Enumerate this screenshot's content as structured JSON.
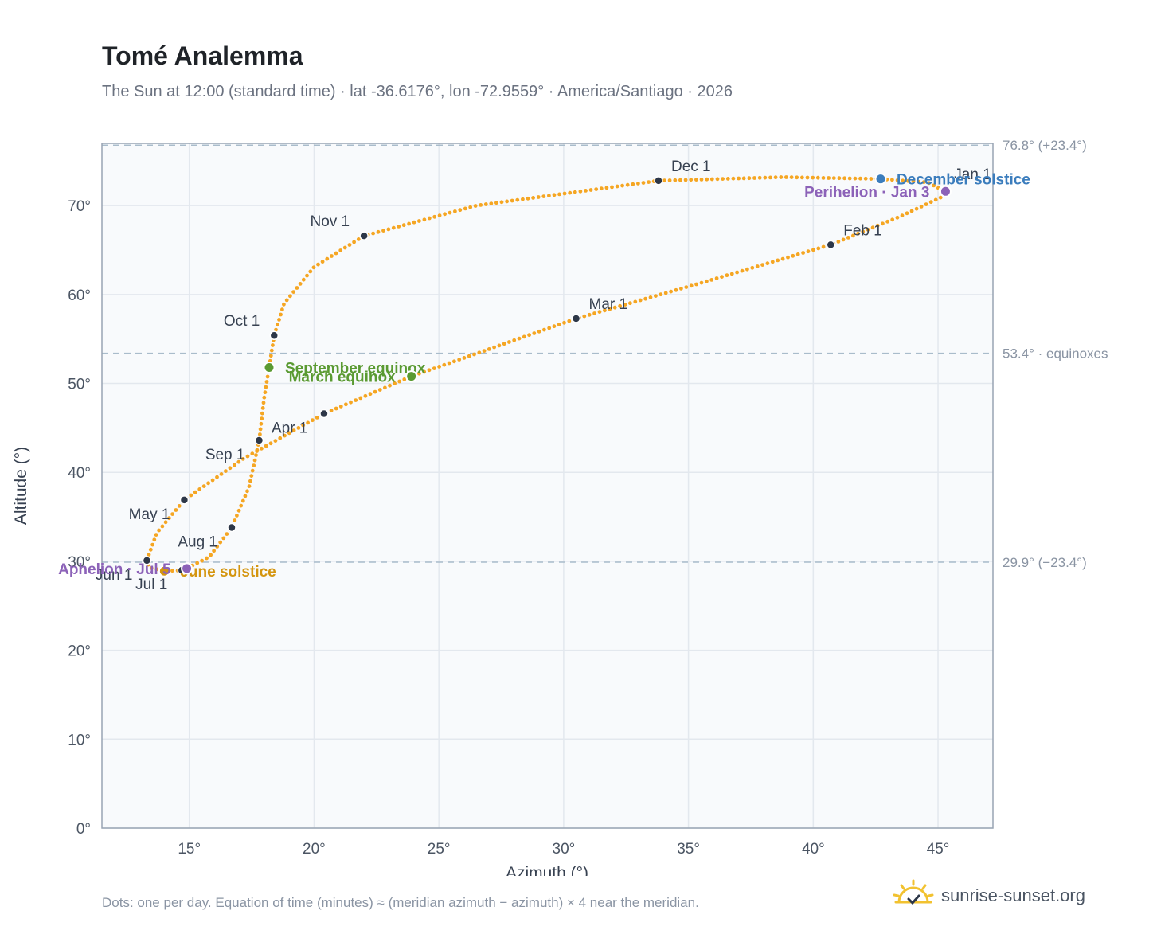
{
  "header": {
    "title": "Tomé Analemma",
    "subtitle": "The Sun at 12:00 (standard time) · lat -36.6176°, lon -72.9559° · America/Santiago · 2026"
  },
  "footer": {
    "note": "Dots: one per day. Equation of time (minutes) ≈ (meridian azimuth − azimuth) × 4 near the meridian.",
    "brand": "sunrise-sunset.org",
    "brand_icon": "sun-logo-icon"
  },
  "colors": {
    "path": "#f5a623",
    "month_marker": "#2d3748",
    "equinox": "#5a9a32",
    "december_solstice": "#3b7dbd",
    "june_solstice": "#d4950f",
    "perihelion_aphelion": "#8c62b8",
    "reference_line": "#a9bccb",
    "grid": "#e3e8ee",
    "plot_bg": "#f8fafc"
  },
  "chart_data": {
    "type": "scatter",
    "xlabel": "Azimuth (°)",
    "ylabel": "Altitude (°)",
    "xlim": [
      11.5,
      47.2
    ],
    "ylim": [
      0,
      77
    ],
    "x_ticks": [
      15,
      20,
      25,
      30,
      35,
      40,
      45
    ],
    "x_tick_labels": [
      "15°",
      "20°",
      "25°",
      "30°",
      "35°",
      "40°",
      "45°"
    ],
    "y_ticks": [
      0,
      10,
      20,
      30,
      40,
      50,
      60,
      70
    ],
    "y_tick_labels": [
      "0°",
      "10°",
      "20°",
      "30°",
      "40°",
      "50°",
      "60°",
      "70°"
    ],
    "grid": true,
    "path_keypoints": [
      {
        "date": "Jan 1",
        "x": 45.2,
        "y": 71.7
      },
      {
        "date": "Jan 3",
        "x": 45.3,
        "y": 71.6
      },
      {
        "date": "Jan 10",
        "x": 45.1,
        "y": 70.9
      },
      {
        "date": "Jan 20",
        "x": 43.5,
        "y": 68.8
      },
      {
        "date": "Feb 1",
        "x": 40.7,
        "y": 65.6
      },
      {
        "date": "Feb 15",
        "x": 35.5,
        "y": 61.3
      },
      {
        "date": "Mar 1",
        "x": 30.5,
        "y": 57.3
      },
      {
        "date": "Mar 20",
        "x": 23.9,
        "y": 50.8
      },
      {
        "date": "Apr 1",
        "x": 20.4,
        "y": 46.6
      },
      {
        "date": "Apr 15",
        "x": 17.2,
        "y": 41.6
      },
      {
        "date": "May 1",
        "x": 14.8,
        "y": 36.9
      },
      {
        "date": "May 15",
        "x": 13.7,
        "y": 33.2
      },
      {
        "date": "Jun 1",
        "x": 13.3,
        "y": 30.1
      },
      {
        "date": "Jun 10",
        "x": 13.4,
        "y": 29.3
      },
      {
        "date": "Jun 21",
        "x": 14.0,
        "y": 28.9
      },
      {
        "date": "Jul 1",
        "x": 14.7,
        "y": 29.0
      },
      {
        "date": "Jul 5",
        "x": 14.9,
        "y": 29.2
      },
      {
        "date": "Jul 15",
        "x": 15.8,
        "y": 30.5
      },
      {
        "date": "Aug 1",
        "x": 16.7,
        "y": 33.8
      },
      {
        "date": "Aug 15",
        "x": 17.4,
        "y": 38.4
      },
      {
        "date": "Sep 1",
        "x": 17.8,
        "y": 43.6
      },
      {
        "date": "Sep 10",
        "x": 18.0,
        "y": 48.4
      },
      {
        "date": "Sep 23",
        "x": 18.2,
        "y": 51.8
      },
      {
        "date": "Oct 1",
        "x": 18.4,
        "y": 55.4
      },
      {
        "date": "Oct 10",
        "x": 18.8,
        "y": 59.0
      },
      {
        "date": "Oct 20",
        "x": 20.0,
        "y": 63.1
      },
      {
        "date": "Nov 1",
        "x": 22.0,
        "y": 66.6
      },
      {
        "date": "Nov 15",
        "x": 26.5,
        "y": 70.0
      },
      {
        "date": "Dec 1",
        "x": 33.8,
        "y": 72.8
      },
      {
        "date": "Dec 10",
        "x": 38.8,
        "y": 73.2
      },
      {
        "date": "Dec 21",
        "x": 42.7,
        "y": 73.0
      },
      {
        "date": "Dec 27",
        "x": 44.6,
        "y": 72.6
      },
      {
        "date": "Jan 1",
        "x": 45.2,
        "y": 71.7
      }
    ],
    "month_markers": [
      {
        "label": "Jan 1",
        "x": 45.2,
        "y": 71.7,
        "dx": 14,
        "dy": -14,
        "anchor": "start"
      },
      {
        "label": "Feb 1",
        "x": 40.7,
        "y": 65.6,
        "dx": 16,
        "dy": -12,
        "anchor": "start"
      },
      {
        "label": "Mar 1",
        "x": 30.5,
        "y": 57.3,
        "dx": 16,
        "dy": -12,
        "anchor": "start"
      },
      {
        "label": "Apr 1",
        "x": 20.4,
        "y": 46.6,
        "dx": -66,
        "dy": 24,
        "anchor": "start"
      },
      {
        "label": "May 1",
        "x": 14.8,
        "y": 36.9,
        "dx": -18,
        "dy": 24,
        "anchor": "end"
      },
      {
        "label": "Jun 1",
        "x": 13.3,
        "y": 30.1,
        "dx": -18,
        "dy": 24,
        "anchor": "end"
      },
      {
        "label": "Jul 1",
        "x": 14.7,
        "y": 29.0,
        "dx": -18,
        "dy": 24,
        "anchor": "end"
      },
      {
        "label": "Aug 1",
        "x": 16.7,
        "y": 33.8,
        "dx": -18,
        "dy": 24,
        "anchor": "end"
      },
      {
        "label": "Sep 1",
        "x": 17.8,
        "y": 43.6,
        "dx": -18,
        "dy": 24,
        "anchor": "end"
      },
      {
        "label": "Oct 1",
        "x": 18.4,
        "y": 55.4,
        "dx": -18,
        "dy": -12,
        "anchor": "end"
      },
      {
        "label": "Nov 1",
        "x": 22.0,
        "y": 66.6,
        "dx": -18,
        "dy": -12,
        "anchor": "end"
      },
      {
        "label": "Dec 1",
        "x": 33.8,
        "y": 72.8,
        "dx": 16,
        "dy": -12,
        "anchor": "start"
      }
    ],
    "events": [
      {
        "label": "December solstice",
        "x": 42.7,
        "y": 73.0,
        "color_key": "december_solstice",
        "dx": 20,
        "dy": 7,
        "anchor": "start"
      },
      {
        "label": "Perihelion · Jan 3",
        "x": 45.3,
        "y": 71.6,
        "color_key": "perihelion_aphelion",
        "dx": -20,
        "dy": 7,
        "anchor": "end"
      },
      {
        "label": "September equinox",
        "x": 18.2,
        "y": 51.8,
        "color_key": "equinox",
        "dx": 20,
        "dy": 7,
        "anchor": "start"
      },
      {
        "label": "March equinox",
        "x": 23.9,
        "y": 50.8,
        "color_key": "equinox",
        "dx": -20,
        "dy": 7,
        "anchor": "end"
      },
      {
        "label": "June solstice",
        "x": 14.0,
        "y": 28.9,
        "color_key": "june_solstice",
        "dx": 20,
        "dy": 7,
        "anchor": "start"
      },
      {
        "label": "Aphelion · Jul 5",
        "x": 14.9,
        "y": 29.2,
        "color_key": "perihelion_aphelion",
        "dx": -20,
        "dy": 7,
        "anchor": "end"
      }
    ],
    "reference_lines": [
      {
        "y": 76.8,
        "label": "76.8° (+23.4°)"
      },
      {
        "y": 53.4,
        "label": "53.4° · equinoxes"
      },
      {
        "y": 29.9,
        "label": "29.9° (−23.4°)"
      }
    ]
  }
}
